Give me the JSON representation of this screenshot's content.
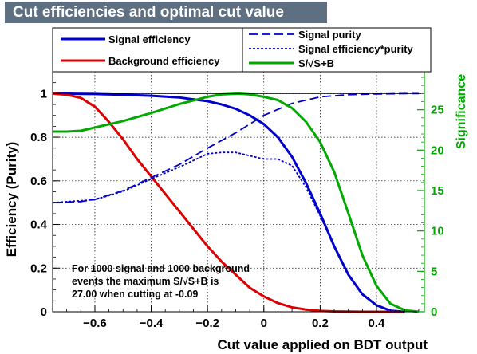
{
  "chart_data": {
    "type": "line",
    "title": "Cut efficiencies and optimal cut value",
    "xlabel": "Cut value applied on BDT output",
    "ylabel": "Efficiency (Purity)",
    "y2label": "Significance",
    "xlim": [
      -0.75,
      0.57
    ],
    "ylim": [
      0,
      1.1
    ],
    "y2lim": [
      0,
      29.7
    ],
    "x_ticks": [
      "−0.6",
      "−0.4",
      "−0.2",
      "0",
      "0.2",
      "0.4"
    ],
    "y_ticks": [
      "0",
      "0.2",
      "0.4",
      "0.6",
      "0.8",
      "1"
    ],
    "y2_ticks": [
      "0",
      "5",
      "10",
      "15",
      "20",
      "25"
    ],
    "grid": true,
    "legend_placement": "top",
    "annotation": [
      "For 1000 signal and 1000 background",
      "events the maximum S/√S+B is",
      "27.00 when cutting at -0.09"
    ],
    "colors": {
      "signal": "#0000cc",
      "background": "#dd0000",
      "significance": "#00aa00",
      "title_bg": "#5f6f82"
    },
    "series": [
      {
        "name": "Signal efficiency",
        "axis": "left",
        "style": "solid",
        "color": "#0000cc",
        "x": [
          -0.75,
          -0.6,
          -0.5,
          -0.4,
          -0.3,
          -0.2,
          -0.15,
          -0.1,
          -0.05,
          0,
          0.05,
          0.1,
          0.15,
          0.2,
          0.25,
          0.3,
          0.35,
          0.4,
          0.45,
          0.5
        ],
        "y": [
          1.0,
          0.998,
          0.995,
          0.99,
          0.982,
          0.965,
          0.95,
          0.93,
          0.9,
          0.86,
          0.8,
          0.71,
          0.59,
          0.45,
          0.3,
          0.17,
          0.08,
          0.03,
          0.005,
          0.0
        ]
      },
      {
        "name": "Background efficiency",
        "axis": "left",
        "style": "solid",
        "color": "#dd0000",
        "x": [
          -0.75,
          -0.7,
          -0.65,
          -0.6,
          -0.55,
          -0.5,
          -0.45,
          -0.4,
          -0.35,
          -0.3,
          -0.25,
          -0.2,
          -0.15,
          -0.1,
          -0.05,
          0,
          0.05,
          0.1,
          0.15,
          0.2,
          0.25,
          0.3,
          0.35,
          0.4,
          0.5
        ],
        "y": [
          1.0,
          0.995,
          0.98,
          0.94,
          0.87,
          0.79,
          0.7,
          0.62,
          0.54,
          0.46,
          0.38,
          0.3,
          0.23,
          0.17,
          0.11,
          0.07,
          0.04,
          0.02,
          0.01,
          0.004,
          0.002,
          0.001,
          0,
          0,
          0
        ]
      },
      {
        "name": "Signal purity",
        "axis": "left",
        "style": "dashed",
        "color": "#0000cc",
        "x": [
          -0.75,
          -0.65,
          -0.6,
          -0.55,
          -0.5,
          -0.4,
          -0.3,
          -0.2,
          -0.1,
          0,
          0.1,
          0.2,
          0.3,
          0.4,
          0.5,
          0.55
        ],
        "y": [
          0.5,
          0.505,
          0.515,
          0.535,
          0.555,
          0.615,
          0.675,
          0.75,
          0.82,
          0.9,
          0.955,
          0.985,
          0.995,
          0.998,
          1.0,
          1.0
        ]
      },
      {
        "name": "Signal efficiency*purity",
        "axis": "left",
        "style": "dotted",
        "color": "#0000cc",
        "x": [
          -0.75,
          -0.6,
          -0.5,
          -0.4,
          -0.3,
          -0.2,
          -0.15,
          -0.1,
          -0.05,
          0,
          0.05,
          0.1,
          0.15,
          0.2,
          0.25,
          0.3,
          0.35,
          0.4,
          0.45,
          0.5
        ],
        "y": [
          0.5,
          0.514,
          0.552,
          0.609,
          0.663,
          0.724,
          0.73,
          0.73,
          0.715,
          0.7,
          0.7,
          0.67,
          0.57,
          0.44,
          0.3,
          0.17,
          0.08,
          0.03,
          0.005,
          0.0
        ]
      },
      {
        "name": "S/√S+B",
        "axis": "right",
        "style": "solid",
        "color": "#00aa00",
        "x": [
          -0.75,
          -0.7,
          -0.65,
          -0.6,
          -0.5,
          -0.4,
          -0.3,
          -0.2,
          -0.15,
          -0.09,
          -0.05,
          0,
          0.05,
          0.1,
          0.15,
          0.2,
          0.25,
          0.3,
          0.35,
          0.4,
          0.45,
          0.5,
          0.55
        ],
        "y": [
          22.3,
          22.3,
          22.4,
          22.8,
          23.6,
          24.6,
          25.7,
          26.6,
          26.9,
          27.0,
          26.9,
          26.6,
          26.2,
          25.2,
          23.5,
          21.0,
          17.3,
          12.2,
          7.0,
          3.2,
          1.0,
          0.2,
          0.0
        ]
      }
    ]
  }
}
